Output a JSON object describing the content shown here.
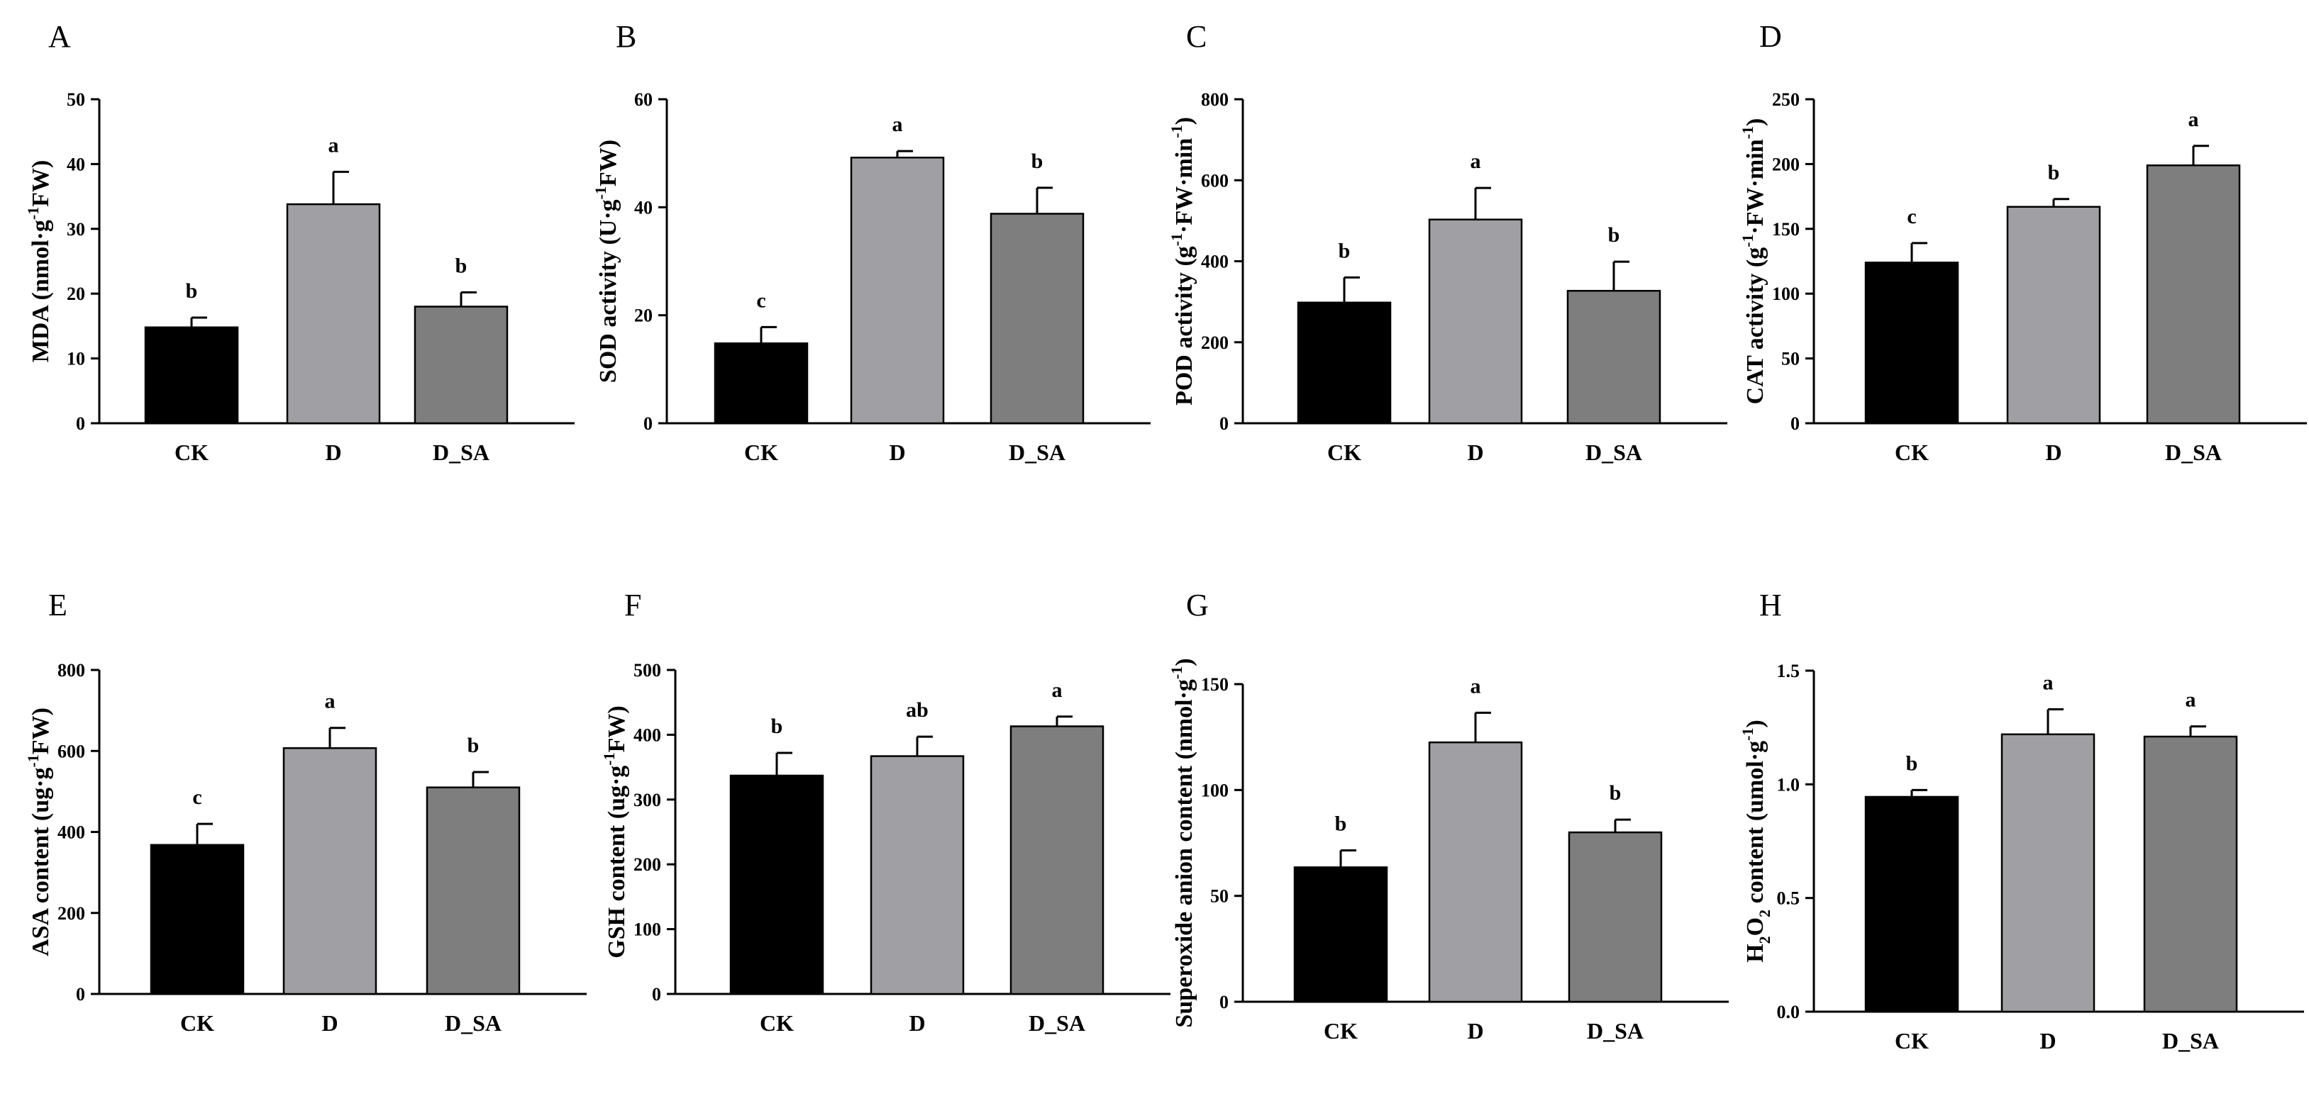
{
  "figure": {
    "bar_colors": [
      "#000000",
      "#a09fa4",
      "#7e7e7e"
    ],
    "axis_color": "#000000"
  },
  "chart_data": [
    {
      "panel": "A",
      "type": "bar",
      "categories": [
        "CK",
        "D",
        "D_SA"
      ],
      "values": [
        14.8,
        33.8,
        18.0
      ],
      "errors": [
        1.5,
        5.0,
        2.2
      ],
      "letters": [
        "b",
        "a",
        "b"
      ],
      "ylim": [
        0,
        50
      ],
      "yticks": [
        0,
        10,
        20,
        30,
        40,
        50
      ],
      "ylabel": [
        {
          "t": "MDA (nmol·g"
        },
        {
          "t": "-1",
          "sup": true
        },
        {
          "t": "FW)"
        }
      ]
    },
    {
      "panel": "B",
      "type": "bar",
      "categories": [
        "CK",
        "D",
        "D_SA"
      ],
      "values": [
        14.8,
        49.2,
        38.8
      ],
      "errors": [
        3.0,
        1.2,
        4.8
      ],
      "letters": [
        "c",
        "a",
        "b"
      ],
      "ylim": [
        0,
        60
      ],
      "yticks": [
        0,
        20,
        40,
        60
      ],
      "ylabel": [
        {
          "t": "SOD activity (U·g"
        },
        {
          "t": "-1",
          "sup": true
        },
        {
          "t": "FW)"
        }
      ]
    },
    {
      "panel": "C",
      "type": "bar",
      "categories": [
        "CK",
        "D",
        "D_SA"
      ],
      "values": [
        298,
        503,
        327
      ],
      "errors": [
        62,
        78,
        72
      ],
      "letters": [
        "b",
        "a",
        "b"
      ],
      "ylim": [
        0,
        800
      ],
      "yticks": [
        0,
        200,
        400,
        600,
        800
      ],
      "ylabel": [
        {
          "t": "POD activity (g"
        },
        {
          "t": "-1",
          "sup": true
        },
        {
          "t": "·FW·min"
        },
        {
          "t": "-1",
          "sup": true
        },
        {
          "t": ")"
        }
      ]
    },
    {
      "panel": "D",
      "type": "bar",
      "categories": [
        "CK",
        "D",
        "D_SA"
      ],
      "values": [
        124,
        167,
        199
      ],
      "errors": [
        15,
        6,
        15
      ],
      "letters": [
        "c",
        "b",
        "a"
      ],
      "ylim": [
        0,
        250
      ],
      "yticks": [
        0,
        50,
        100,
        150,
        200,
        250
      ],
      "ylabel": [
        {
          "t": "CAT activity (g"
        },
        {
          "t": "-1",
          "sup": true
        },
        {
          "t": "·FW·min"
        },
        {
          "t": "-1",
          "sup": true
        },
        {
          "t": ")"
        }
      ]
    },
    {
      "panel": "E",
      "type": "bar",
      "categories": [
        "CK",
        "D",
        "D_SA"
      ],
      "values": [
        368,
        607,
        510
      ],
      "errors": [
        52,
        50,
        38
      ],
      "letters": [
        "c",
        "a",
        "b"
      ],
      "ylim": [
        0,
        800
      ],
      "yticks": [
        0,
        200,
        400,
        600,
        800
      ],
      "ylabel": [
        {
          "t": "ASA content (ug·g"
        },
        {
          "t": "-1",
          "sup": true
        },
        {
          "t": "FW)"
        }
      ]
    },
    {
      "panel": "F",
      "type": "bar",
      "categories": [
        "CK",
        "D",
        "D_SA"
      ],
      "values": [
        337,
        367,
        413
      ],
      "errors": [
        35,
        30,
        15
      ],
      "letters": [
        "b",
        "ab",
        "a"
      ],
      "ylim": [
        0,
        500
      ],
      "yticks": [
        0,
        100,
        200,
        300,
        400,
        500
      ],
      "ylabel": [
        {
          "t": "GSH content (ug·g"
        },
        {
          "t": "-1",
          "sup": true
        },
        {
          "t": "FW)"
        }
      ]
    },
    {
      "panel": "G",
      "type": "bar",
      "categories": [
        "CK",
        "D",
        "D_SA"
      ],
      "values": [
        63.5,
        122.5,
        80.0
      ],
      "errors": [
        8.0,
        14.0,
        6.0
      ],
      "letters": [
        "b",
        "a",
        "b"
      ],
      "ylim": [
        0,
        150
      ],
      "yticks": [
        0,
        50,
        100,
        150
      ],
      "ylabel": [
        {
          "t": "Superoxide anion content (nmol·g"
        },
        {
          "t": "-1",
          "sup": true
        },
        {
          "t": ")"
        }
      ]
    },
    {
      "panel": "H",
      "type": "bar",
      "categories": [
        "CK",
        "D",
        "D_SA"
      ],
      "values": [
        0.945,
        1.22,
        1.21
      ],
      "errors": [
        0.03,
        0.11,
        0.045
      ],
      "letters": [
        "b",
        "a",
        "a"
      ],
      "ylim": [
        0,
        1.5
      ],
      "yticks": [
        0.0,
        0.5,
        1.0,
        1.5
      ],
      "tick_decimals": 1,
      "ylabel": [
        {
          "t": "H"
        },
        {
          "t": "2",
          "sub": true
        },
        {
          "t": "O"
        },
        {
          "t": "2",
          "sub": true
        },
        {
          "t": " content (umol·g"
        },
        {
          "t": "-1",
          "sup": true
        },
        {
          "t": ")"
        }
      ]
    }
  ]
}
